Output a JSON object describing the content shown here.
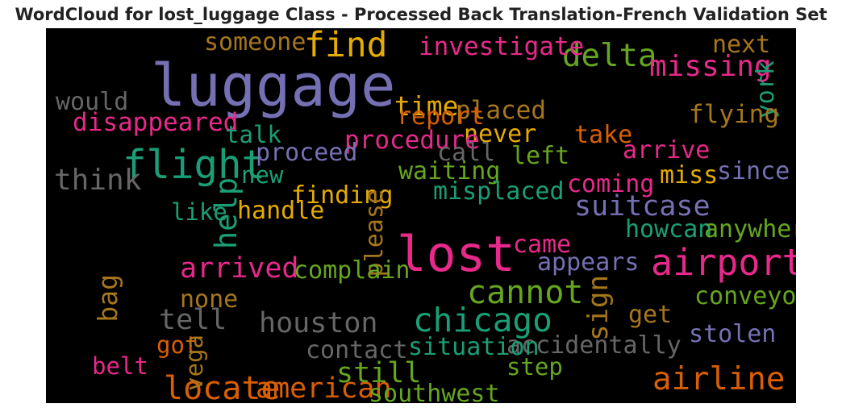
{
  "chart_data": {
    "type": "wordcloud",
    "title": "WordCloud for lost_luggage Class - Processed Back Translation-French Validation Set",
    "background": "#000000",
    "palette": [
      "#7570b3",
      "#e7298a",
      "#1b9e77",
      "#d95f02",
      "#e6ab02",
      "#66a61e",
      "#a6761d",
      "#666666"
    ],
    "words": [
      {
        "text": "luggage",
        "weight": 1.0,
        "color": "#7570b3"
      },
      {
        "text": "lost",
        "weight": 0.8,
        "color": "#e7298a"
      },
      {
        "text": "flight",
        "weight": 0.58,
        "color": "#1b9e77"
      },
      {
        "text": "airport",
        "weight": 0.5,
        "color": "#e7298a"
      },
      {
        "text": "find",
        "weight": 0.46,
        "color": "#e6ab02"
      },
      {
        "text": "chicago",
        "weight": 0.42,
        "color": "#1b9e77"
      },
      {
        "text": "cannot",
        "weight": 0.4,
        "color": "#66a61e"
      },
      {
        "text": "airline",
        "weight": 0.39,
        "color": "#d95f02"
      },
      {
        "text": "locate",
        "weight": 0.4,
        "color": "#d95f02"
      },
      {
        "text": "delta",
        "weight": 0.38,
        "color": "#66a61e"
      },
      {
        "text": "help",
        "weight": 0.36,
        "color": "#1b9e77"
      },
      {
        "text": "missing",
        "weight": 0.33,
        "color": "#e7298a"
      },
      {
        "text": "think",
        "weight": 0.33,
        "color": "#666666"
      },
      {
        "text": "arrived",
        "weight": 0.32,
        "color": "#e7298a"
      },
      {
        "text": "suitcase",
        "weight": 0.32,
        "color": "#7570b3"
      },
      {
        "text": "houston",
        "weight": 0.32,
        "color": "#666666"
      },
      {
        "text": "american",
        "weight": 0.32,
        "color": "#d95f02"
      },
      {
        "text": "still",
        "weight": 0.32,
        "color": "#66a61e"
      },
      {
        "text": "tell",
        "weight": 0.31,
        "color": "#666666"
      },
      {
        "text": "sign",
        "weight": 0.29,
        "color": "#a6761d"
      },
      {
        "text": "time",
        "weight": 0.28,
        "color": "#e6ab02"
      },
      {
        "text": "bag",
        "weight": 0.27,
        "color": "#a6761d"
      },
      {
        "text": "investigate",
        "weight": 0.24,
        "color": "#e7298a"
      },
      {
        "text": "someone",
        "weight": 0.22,
        "color": "#a6761d"
      },
      {
        "text": "next",
        "weight": 0.22,
        "color": "#a6761d"
      },
      {
        "text": "york",
        "weight": 0.22,
        "color": "#1b9e77"
      },
      {
        "text": "would",
        "weight": 0.22,
        "color": "#666666"
      },
      {
        "text": "placed",
        "weight": 0.24,
        "color": "#a6761d"
      },
      {
        "text": "report",
        "weight": 0.23,
        "color": "#d95f02"
      },
      {
        "text": "flying",
        "weight": 0.24,
        "color": "#a6761d"
      },
      {
        "text": "disappeared",
        "weight": 0.24,
        "color": "#e7298a"
      },
      {
        "text": "talk",
        "weight": 0.21,
        "color": "#1b9e77"
      },
      {
        "text": "never",
        "weight": 0.23,
        "color": "#e6ab02"
      },
      {
        "text": "procedure",
        "weight": 0.24,
        "color": "#e7298a"
      },
      {
        "text": "take",
        "weight": 0.23,
        "color": "#d95f02"
      },
      {
        "text": "proceed",
        "weight": 0.23,
        "color": "#7570b3"
      },
      {
        "text": "call",
        "weight": 0.22,
        "color": "#666666"
      },
      {
        "text": "left",
        "weight": 0.22,
        "color": "#66a61e"
      },
      {
        "text": "arrive",
        "weight": 0.22,
        "color": "#e7298a"
      },
      {
        "text": "new",
        "weight": 0.21,
        "color": "#1b9e77"
      },
      {
        "text": "waiting",
        "weight": 0.23,
        "color": "#66a61e"
      },
      {
        "text": "miss",
        "weight": 0.23,
        "color": "#e6ab02"
      },
      {
        "text": "since",
        "weight": 0.23,
        "color": "#7570b3"
      },
      {
        "text": "coming",
        "weight": 0.23,
        "color": "#e7298a"
      },
      {
        "text": "finding",
        "weight": 0.23,
        "color": "#e6ab02"
      },
      {
        "text": "please",
        "weight": 0.23,
        "color": "#a6761d"
      },
      {
        "text": "misplaced",
        "weight": 0.23,
        "color": "#1b9e77"
      },
      {
        "text": "like",
        "weight": 0.21,
        "color": "#1b9e77"
      },
      {
        "text": "handle",
        "weight": 0.22,
        "color": "#e6ab02"
      },
      {
        "text": "howcan",
        "weight": 0.22,
        "color": "#1b9e77"
      },
      {
        "text": "anywhere",
        "weight": 0.22,
        "color": "#66a61e"
      },
      {
        "text": "came",
        "weight": 0.22,
        "color": "#e7298a"
      },
      {
        "text": "appears",
        "weight": 0.23,
        "color": "#7570b3"
      },
      {
        "text": "complain",
        "weight": 0.23,
        "color": "#66a61e"
      },
      {
        "text": "none",
        "weight": 0.22,
        "color": "#a6761d"
      },
      {
        "text": "conveyor",
        "weight": 0.22,
        "color": "#66a61e"
      },
      {
        "text": "get",
        "weight": 0.22,
        "color": "#a6761d"
      },
      {
        "text": "accidentally",
        "weight": 0.23,
        "color": "#666666"
      },
      {
        "text": "stolen",
        "weight": 0.22,
        "color": "#7570b3"
      },
      {
        "text": "got",
        "weight": 0.21,
        "color": "#d95f02"
      },
      {
        "text": "vega",
        "weight": 0.21,
        "color": "#a6761d"
      },
      {
        "text": "contact",
        "weight": 0.22,
        "color": "#666666"
      },
      {
        "text": "situation",
        "weight": 0.23,
        "color": "#1b9e77"
      },
      {
        "text": "belt",
        "weight": 0.21,
        "color": "#e7298a"
      },
      {
        "text": "step",
        "weight": 0.21,
        "color": "#66a61e"
      },
      {
        "text": "southwest",
        "weight": 0.22,
        "color": "#66a61e"
      }
    ]
  }
}
